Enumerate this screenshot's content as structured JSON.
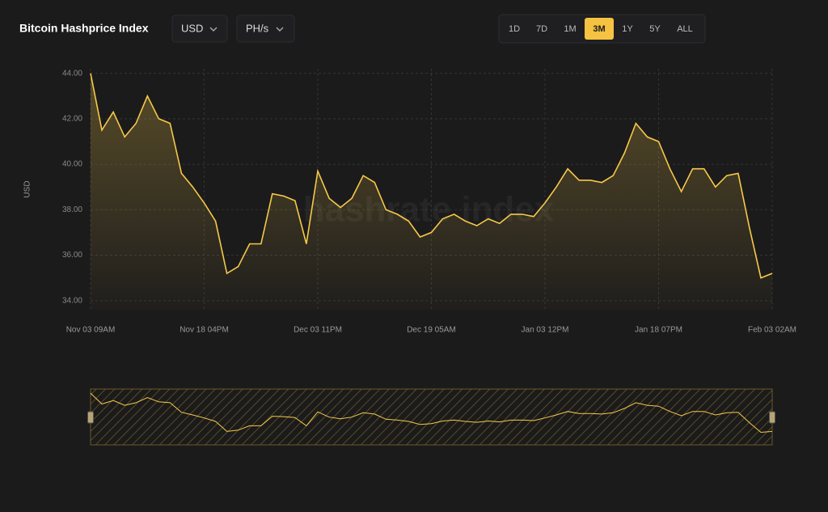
{
  "header": {
    "title": "Bitcoin Hashprice Index",
    "currency": "USD",
    "unit": "PH/s",
    "ranges": [
      "1D",
      "7D",
      "1M",
      "3M",
      "1Y",
      "5Y",
      "ALL"
    ],
    "active_range": "3M"
  },
  "chart_data": {
    "type": "line",
    "y_label": "USD",
    "watermark": "hashrate index",
    "categories": [
      "Nov 03 09AM",
      null,
      null,
      null,
      null,
      null,
      null,
      null,
      null,
      null,
      "Nov 18 04PM",
      null,
      null,
      null,
      null,
      null,
      null,
      null,
      null,
      null,
      "Dec 03 11PM",
      null,
      null,
      null,
      null,
      null,
      null,
      null,
      null,
      null,
      "Dec 19 05AM",
      null,
      null,
      null,
      null,
      null,
      null,
      null,
      null,
      null,
      "Jan 03 12PM",
      null,
      null,
      null,
      null,
      null,
      null,
      null,
      null,
      null,
      "Jan 18 07PM",
      null,
      null,
      null,
      null,
      null,
      null,
      null,
      null,
      null,
      "Feb 03 02AM"
    ],
    "series": [
      {
        "name": "USD",
        "color": "#f7c948",
        "values": [
          44.0,
          41.5,
          42.3,
          41.2,
          41.8,
          43.0,
          42.0,
          41.8,
          39.6,
          39.0,
          38.3,
          37.5,
          35.2,
          35.5,
          36.5,
          36.5,
          38.7,
          38.6,
          38.4,
          36.5,
          39.7,
          38.5,
          38.1,
          38.5,
          39.5,
          39.2,
          38.0,
          37.8,
          37.5,
          36.8,
          37.0,
          37.6,
          37.8,
          37.5,
          37.3,
          37.6,
          37.4,
          37.8,
          37.8,
          37.7,
          38.3,
          39.0,
          39.8,
          39.3,
          39.3,
          39.2,
          39.5,
          40.5,
          41.8,
          41.2,
          41.0,
          39.8,
          38.8,
          39.8,
          39.8,
          39.0,
          39.5,
          39.6,
          37.2,
          35.0,
          35.2
        ]
      }
    ],
    "ylim": [
      33.6,
      44.2
    ],
    "yticks": [
      {
        "value": 34,
        "label": "34.00"
      },
      {
        "value": 36,
        "label": "36.00"
      },
      {
        "value": 38,
        "label": "38.00"
      },
      {
        "value": 40,
        "label": "40.00"
      },
      {
        "value": 42,
        "label": "42.00"
      },
      {
        "value": 44,
        "label": "44.00"
      }
    ],
    "grid": true
  }
}
